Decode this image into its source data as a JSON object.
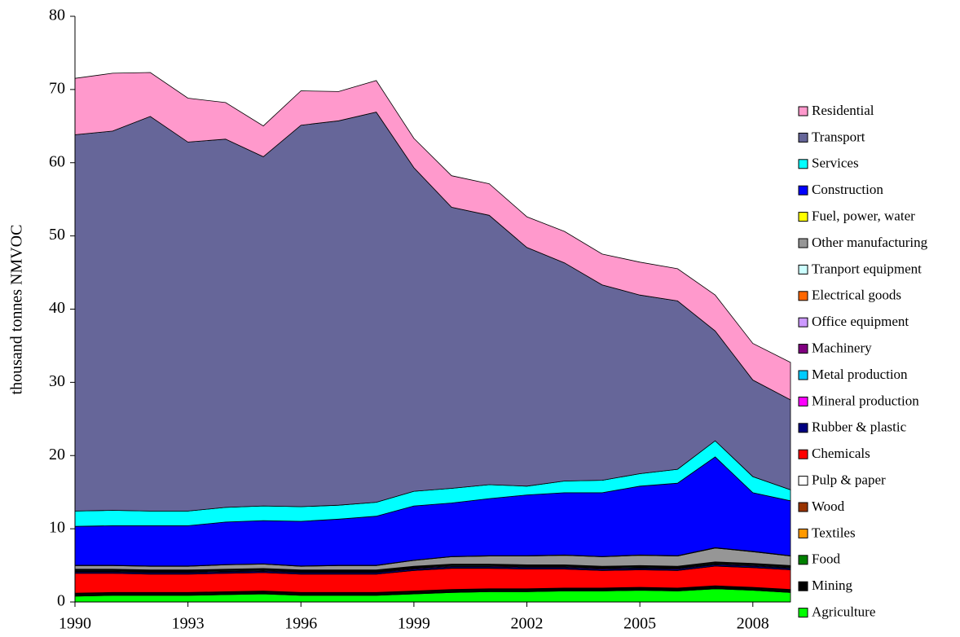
{
  "chart_data": {
    "type": "stacked-area",
    "y_label": "thousand tonnes NMVOC",
    "x": [
      1990,
      1991,
      1992,
      1993,
      1994,
      1995,
      1996,
      1997,
      1998,
      1999,
      2000,
      2001,
      2002,
      2003,
      2004,
      2005,
      2006,
      2007,
      2008,
      2009
    ],
    "xlim": [
      1990,
      2009
    ],
    "xticks": [
      1990,
      1993,
      1996,
      1999,
      2002,
      2005,
      2008
    ],
    "ylim": [
      0,
      80
    ],
    "yticks": [
      0,
      10,
      20,
      30,
      40,
      50,
      60,
      70,
      80
    ],
    "series": [
      {
        "name": "Agriculture",
        "color": "#00ff00",
        "values": [
          0.8,
          0.9,
          0.9,
          0.9,
          1.0,
          1.1,
          0.9,
          0.9,
          0.9,
          1.1,
          1.3,
          1.4,
          1.4,
          1.5,
          1.5,
          1.6,
          1.5,
          1.8,
          1.6,
          1.3
        ]
      },
      {
        "name": "Mining",
        "color": "#000000",
        "values": [
          0.15,
          0.15,
          0.15,
          0.15,
          0.15,
          0.15,
          0.15,
          0.15,
          0.15,
          0.15,
          0.15,
          0.15,
          0.15,
          0.15,
          0.15,
          0.15,
          0.15,
          0.15,
          0.15,
          0.15
        ]
      },
      {
        "name": "Food",
        "color": "#008000",
        "values": [
          0.1,
          0.1,
          0.1,
          0.1,
          0.1,
          0.1,
          0.1,
          0.1,
          0.1,
          0.1,
          0.1,
          0.1,
          0.1,
          0.1,
          0.1,
          0.1,
          0.1,
          0.1,
          0.1,
          0.1
        ]
      },
      {
        "name": "Textiles",
        "color": "#ff9900",
        "values": [
          0.05,
          0.05,
          0.05,
          0.05,
          0.05,
          0.05,
          0.05,
          0.05,
          0.05,
          0.05,
          0.05,
          0.05,
          0.05,
          0.05,
          0.05,
          0.05,
          0.05,
          0.05,
          0.05,
          0.05
        ]
      },
      {
        "name": "Wood",
        "color": "#993300",
        "values": [
          0.05,
          0.05,
          0.05,
          0.05,
          0.05,
          0.05,
          0.05,
          0.05,
          0.05,
          0.05,
          0.05,
          0.05,
          0.05,
          0.05,
          0.05,
          0.05,
          0.05,
          0.05,
          0.05,
          0.05
        ]
      },
      {
        "name": "Pulp & paper",
        "color": "#ffffff",
        "values": [
          0.05,
          0.05,
          0.05,
          0.05,
          0.05,
          0.05,
          0.05,
          0.05,
          0.05,
          0.05,
          0.05,
          0.05,
          0.05,
          0.05,
          0.05,
          0.05,
          0.05,
          0.05,
          0.05,
          0.05
        ]
      },
      {
        "name": "Chemicals",
        "color": "#ff0000",
        "values": [
          2.7,
          2.6,
          2.5,
          2.5,
          2.5,
          2.5,
          2.5,
          2.5,
          2.5,
          2.8,
          2.9,
          2.8,
          2.7,
          2.6,
          2.4,
          2.4,
          2.4,
          2.7,
          2.7,
          2.7
        ]
      },
      {
        "name": "Rubber & plastic",
        "color": "#000080",
        "values": [
          0.2,
          0.2,
          0.2,
          0.2,
          0.2,
          0.2,
          0.2,
          0.2,
          0.2,
          0.2,
          0.2,
          0.2,
          0.2,
          0.2,
          0.2,
          0.2,
          0.2,
          0.2,
          0.2,
          0.2
        ]
      },
      {
        "name": "Mineral production",
        "color": "#ff00ff",
        "values": [
          0.1,
          0.1,
          0.1,
          0.1,
          0.1,
          0.1,
          0.1,
          0.1,
          0.1,
          0.1,
          0.1,
          0.1,
          0.1,
          0.1,
          0.1,
          0.1,
          0.1,
          0.1,
          0.1,
          0.1
        ]
      },
      {
        "name": "Metal production",
        "color": "#00ccff",
        "values": [
          0.1,
          0.1,
          0.1,
          0.1,
          0.1,
          0.1,
          0.1,
          0.1,
          0.1,
          0.1,
          0.1,
          0.1,
          0.1,
          0.1,
          0.1,
          0.1,
          0.1,
          0.1,
          0.1,
          0.1
        ]
      },
      {
        "name": "Machinery",
        "color": "#800080",
        "values": [
          0.05,
          0.05,
          0.05,
          0.05,
          0.05,
          0.05,
          0.05,
          0.05,
          0.05,
          0.05,
          0.05,
          0.05,
          0.05,
          0.05,
          0.05,
          0.05,
          0.05,
          0.05,
          0.05,
          0.05
        ]
      },
      {
        "name": "Office equipment",
        "color": "#cc99ff",
        "values": [
          0.02,
          0.02,
          0.02,
          0.02,
          0.02,
          0.02,
          0.02,
          0.02,
          0.02,
          0.02,
          0.02,
          0.02,
          0.02,
          0.02,
          0.02,
          0.02,
          0.02,
          0.02,
          0.02,
          0.02
        ]
      },
      {
        "name": "Electrical goods",
        "color": "#ff6600",
        "values": [
          0.05,
          0.05,
          0.05,
          0.05,
          0.05,
          0.05,
          0.05,
          0.05,
          0.05,
          0.05,
          0.05,
          0.05,
          0.05,
          0.05,
          0.05,
          0.05,
          0.05,
          0.05,
          0.05,
          0.05
        ]
      },
      {
        "name": "Tranport equipment",
        "color": "#ccffff",
        "values": [
          0.05,
          0.05,
          0.05,
          0.05,
          0.05,
          0.05,
          0.05,
          0.05,
          0.05,
          0.05,
          0.05,
          0.05,
          0.05,
          0.05,
          0.05,
          0.05,
          0.05,
          0.05,
          0.05,
          0.05
        ]
      },
      {
        "name": "Other manufacturing",
        "color": "#969696",
        "values": [
          0.5,
          0.5,
          0.5,
          0.5,
          0.6,
          0.6,
          0.5,
          0.6,
          0.6,
          0.8,
          1.0,
          1.1,
          1.2,
          1.3,
          1.3,
          1.4,
          1.4,
          1.9,
          1.6,
          1.3
        ]
      },
      {
        "name": "Fuel, power, water",
        "color": "#ffff00",
        "values": [
          0.05,
          0.05,
          0.05,
          0.05,
          0.05,
          0.05,
          0.05,
          0.05,
          0.05,
          0.05,
          0.05,
          0.05,
          0.05,
          0.05,
          0.05,
          0.05,
          0.05,
          0.05,
          0.05,
          0.05
        ]
      },
      {
        "name": "Construction",
        "color": "#0000ff",
        "values": [
          5.3,
          5.4,
          5.5,
          5.5,
          5.8,
          5.9,
          6.1,
          6.3,
          6.7,
          7.4,
          7.3,
          7.8,
          8.3,
          8.5,
          8.7,
          9.4,
          9.9,
          12.4,
          8.0,
          7.5
        ]
      },
      {
        "name": "Services",
        "color": "#00ffff",
        "values": [
          2.1,
          2.1,
          2.0,
          2.0,
          2.0,
          2.0,
          2.0,
          1.9,
          1.9,
          2.0,
          2.0,
          1.9,
          1.2,
          1.6,
          1.7,
          1.7,
          1.9,
          2.2,
          2.2,
          1.5
        ]
      },
      {
        "name": "Transport",
        "color": "#666699",
        "values": [
          51.4,
          51.8,
          53.9,
          50.4,
          50.3,
          47.7,
          52.1,
          52.5,
          53.3,
          44.2,
          38.4,
          36.8,
          32.6,
          29.8,
          26.7,
          24.4,
          23.0,
          15.0,
          13.2,
          12.3
        ]
      },
      {
        "name": "Residential",
        "color": "#ff99cc",
        "values": [
          7.7,
          7.9,
          6.0,
          6.0,
          5.0,
          4.2,
          4.7,
          4.0,
          4.3,
          4.0,
          4.3,
          4.3,
          4.2,
          4.3,
          4.2,
          4.5,
          4.4,
          4.9,
          5.0,
          5.1
        ]
      }
    ]
  }
}
